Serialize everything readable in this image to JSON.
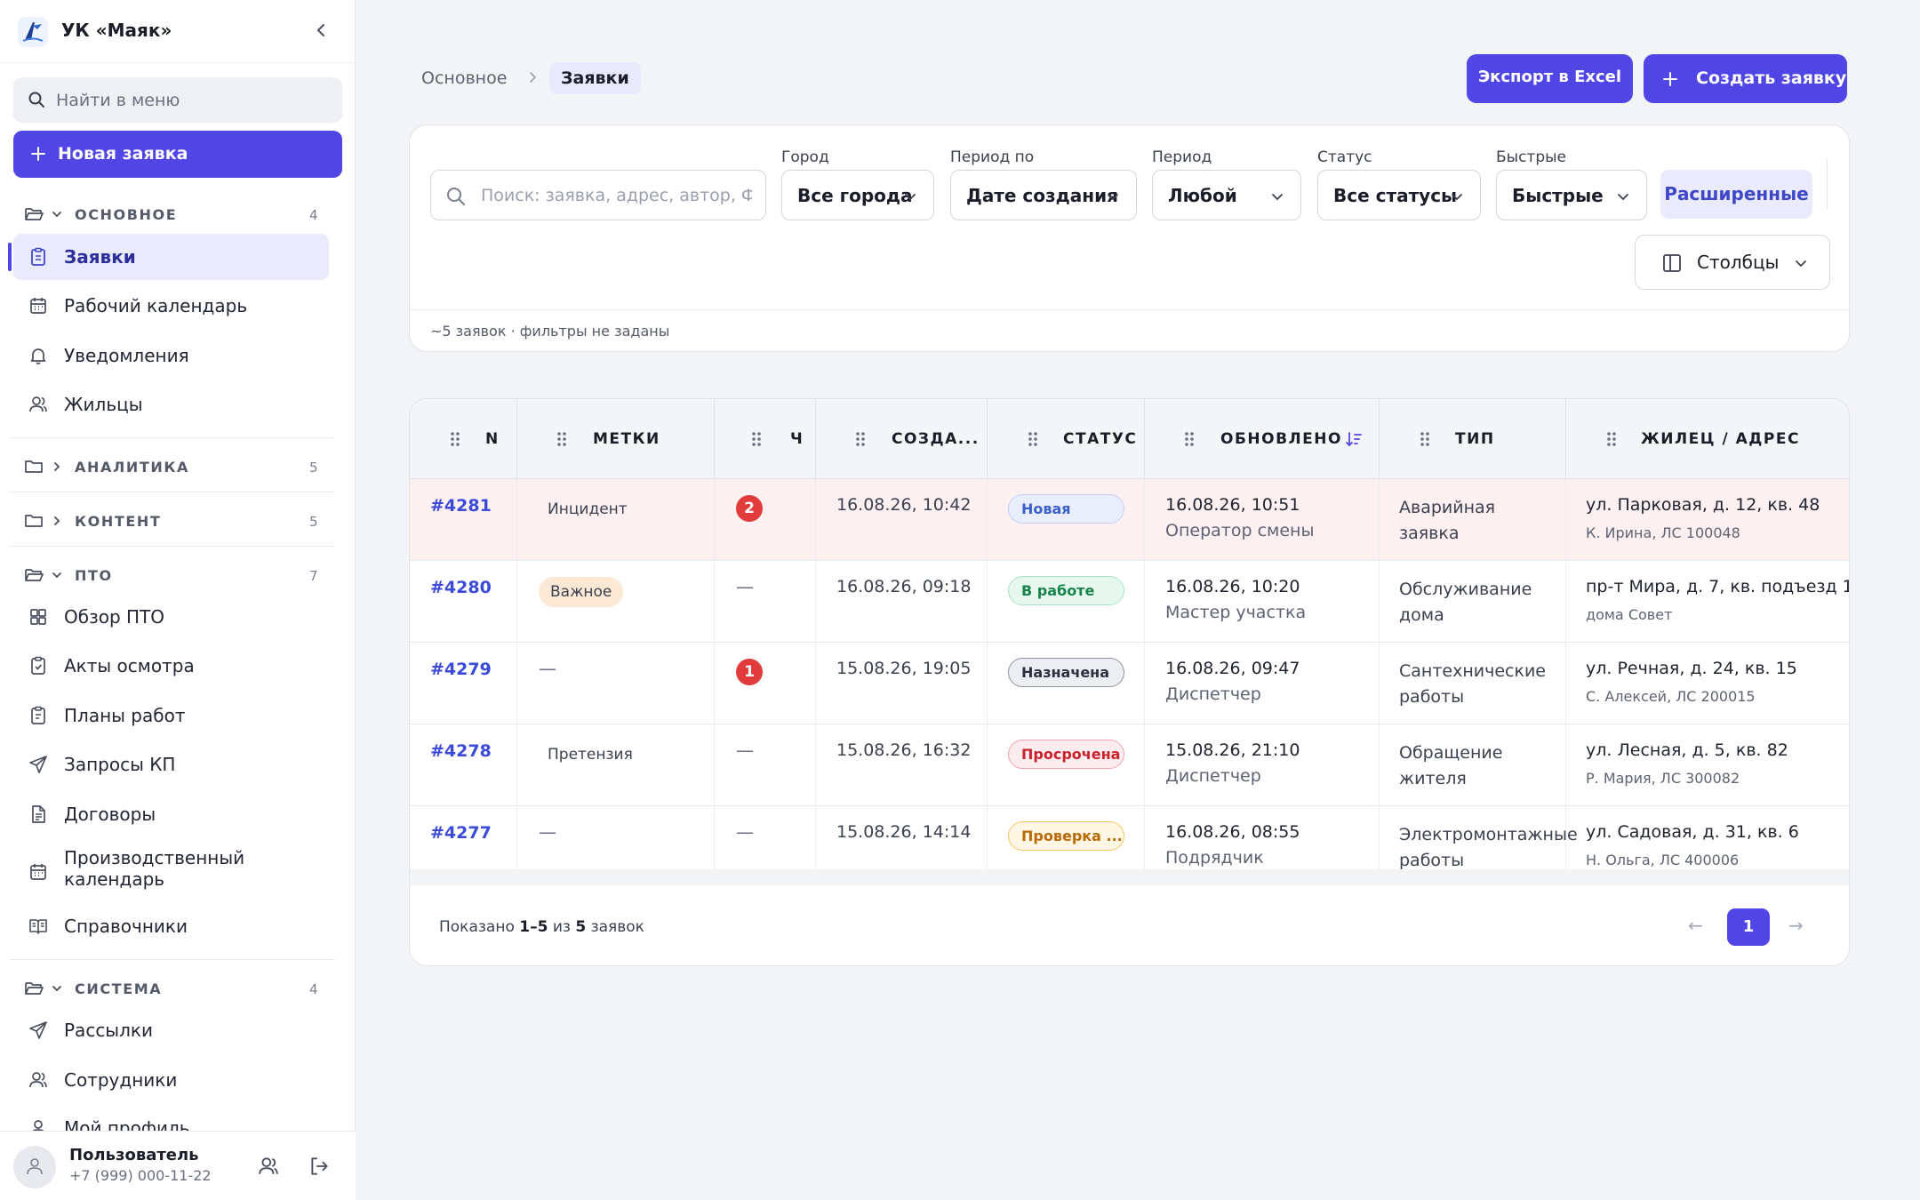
{
  "app": {
    "org_name": "УК «Маяк»"
  },
  "sidebar": {
    "search_placeholder": "Найти в меню",
    "new_request_label": "Новая заявка",
    "groups": {
      "main": {
        "label": "ОСНОВНОЕ",
        "count": "4"
      },
      "analytics": {
        "label": "АНАЛИТИКА",
        "count": "5"
      },
      "content": {
        "label": "КОНТЕНТ",
        "count": "5"
      },
      "pto": {
        "label": "ПТО",
        "count": "7"
      },
      "system": {
        "label": "СИСТЕМА",
        "count": "4"
      }
    },
    "items": {
      "requests": "Заявки",
      "work_calendar": "Рабочий календарь",
      "notifications": "Уведомления",
      "residents": "Жильцы",
      "pto_overview": "Обзор ПТО",
      "inspection_acts": "Акты осмотра",
      "work_plans": "Планы работ",
      "kp_requests": "Запросы КП",
      "contracts": "Договоры",
      "production_calendar": "Производственный календарь",
      "directories": "Справочники",
      "mailings": "Рассылки",
      "employees": "Сотрудники",
      "my_profile": "Мой профиль"
    },
    "user": {
      "name": "Пользователь",
      "phone": "+7 (999) 000-11-22"
    }
  },
  "header": {
    "breadcrumb_root": "Основное",
    "breadcrumb_current": "Заявки",
    "export_label": "Экспорт в Excel",
    "create_label": "Создать заявку"
  },
  "filters": {
    "search_placeholder": "Поиск: заявка, адрес, автор, ФИО",
    "city": {
      "label": "Город",
      "value": "Все города"
    },
    "period_by": {
      "label": "Период по",
      "value": "Дате создания"
    },
    "period": {
      "label": "Период",
      "value": "Любой"
    },
    "status": {
      "label": "Статус",
      "value": "Все статусы"
    },
    "quick": {
      "label": "Быстрые",
      "value": "Быстрые"
    },
    "advanced_label": "Расширенные",
    "columns_label": "Столбцы",
    "summary": "~5 заявок · фильтры не заданы"
  },
  "table": {
    "columns": {
      "n": "N",
      "tags": "МЕТКИ",
      "comments": "Ч",
      "created": "СОЗДА...",
      "status": "СТАТУС",
      "updated": "ОБНОВЛЕНО",
      "type": "ТИП",
      "resident": "ЖИЛЕЦ / АДРЕС"
    },
    "rows": [
      {
        "id": "#4281",
        "tag": "Инцидент",
        "badge": "2",
        "created": "16.08.26, 10:42",
        "status": "Новая",
        "updated": "16.08.26, 10:51",
        "updated_by": "Оператор смены",
        "type": "Аварийная заявка",
        "address": "ул. Парковая, д. 12, кв. 48",
        "resident": "К. Ирина, ЛС 100048"
      },
      {
        "id": "#4280",
        "tag": "Важное",
        "badge": "—",
        "created": "16.08.26, 09:18",
        "status": "В работе",
        "updated": "16.08.26, 10:20",
        "updated_by": "Мастер участка",
        "type": "Обслуживание дома",
        "address": "пр-т Мира, д. 7, кв. подъезд 1",
        "resident": "дома Совет"
      },
      {
        "id": "#4279",
        "tag": "—",
        "badge": "1",
        "created": "15.08.26, 19:05",
        "status": "Назначена",
        "updated": "16.08.26, 09:47",
        "updated_by": "Диспетчер",
        "type": "Сантехнические работы",
        "address": "ул. Речная, д. 24, кв. 15",
        "resident": "С. Алексей, ЛС 200015"
      },
      {
        "id": "#4278",
        "tag": "Претензия",
        "badge": "—",
        "created": "15.08.26, 16:32",
        "status": "Просрочена",
        "updated": "15.08.26, 21:10",
        "updated_by": "Диспетчер",
        "type": "Обращение жителя",
        "address": "ул. Лесная, д. 5, кв. 82",
        "resident": "Р. Мария, ЛС 300082"
      },
      {
        "id": "#4277",
        "tag": "—",
        "badge": "—",
        "created": "15.08.26, 14:14",
        "status": "Проверка ...",
        "updated": "16.08.26, 08:55",
        "updated_by": "Подрядчик",
        "type": "Электромонтажные работы",
        "address": "ул. Садовая, д. 31, кв. 6",
        "resident": "Н. Ольга, ЛС 400006"
      }
    ]
  },
  "pagination": {
    "shown_prefix": "Показано",
    "shown_range": "1–5",
    "of": "из",
    "total": "5",
    "suffix": "заявок",
    "prev": "←",
    "current_page": "1",
    "next": "→"
  },
  "colors": {
    "accent": "#4f46e5",
    "danger": "#e23b3b",
    "highlight_row": "#fdf0f1"
  }
}
